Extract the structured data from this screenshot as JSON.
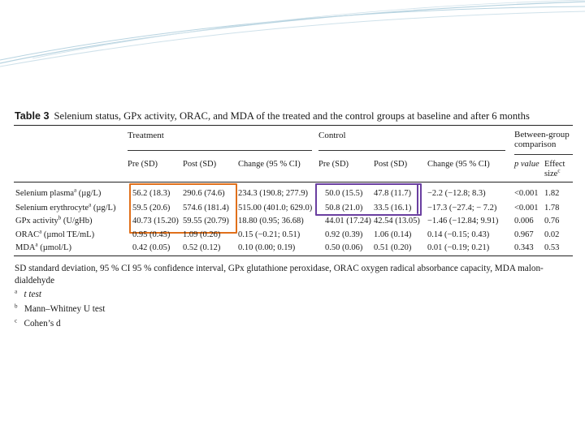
{
  "table": {
    "label": "Table 3",
    "title": "Selenium status, GPx activity, ORAC, and MDA of the treated and the control groups at baseline and after 6 months",
    "groups": {
      "treatment": "Treatment",
      "control": "Control",
      "between_line1": "Between-group",
      "between_line2": "comparison"
    },
    "columns": {
      "t_pre": "Pre (SD)",
      "t_post": "Post (SD)",
      "t_change": "Change (95 % CI)",
      "c_pre": "Pre (SD)",
      "c_post": "Post (SD)",
      "c_change": "Change (95 % CI)",
      "p_value": "p value",
      "effect_line1": "Effect",
      "effect_line2": "size"
    },
    "rows": [
      {
        "label": "Selenium plasma",
        "label_sup": "a",
        "label_unit": " (µg/L)",
        "t_pre": "56.2 (18.3)",
        "t_post": "290.6 (74.6)",
        "t_change": "234.3 (190.8; 277.9)",
        "c_pre": "50.0 (15.5)",
        "c_post": "47.8 (11.7)",
        "c_change": "−2.2 (−12.8; 8.3)",
        "p": "<0.001",
        "es": "1.82"
      },
      {
        "label": "Selenium erythrocyte",
        "label_sup": "a",
        "label_unit": " (µg/L)",
        "t_pre": "59.5 (20.6)",
        "t_post": "574.6 (181.4)",
        "t_change": "515.00 (401.0; 629.0)",
        "c_pre": "50.8 (21.0)",
        "c_post": "33.5 (16.1)",
        "c_change": "−17.3 (−27.4; − 7.2)",
        "p": "<0.001",
        "es": "1.78"
      },
      {
        "label": "GPx activity",
        "label_sup": "b",
        "label_unit": " (U/gHb)",
        "t_pre": "40.73 (15.20)",
        "t_post": "59.55 (20.79)",
        "t_change": "18.80 (0.95; 36.68)",
        "c_pre": "44.01 (17.24)",
        "c_post": "42.54 (13.05)",
        "c_change": "−1.46 (−12.84; 9.91)",
        "p": "0.006",
        "es": "0.76"
      },
      {
        "label": "ORAC",
        "label_sup": "a",
        "label_unit": " (µmol TE/mL)",
        "t_pre": "0.95 (0.45)",
        "t_post": "1.09 (0.26)",
        "t_change": "0.15 (−0.21; 0.51)",
        "c_pre": "0.92 (0.39)",
        "c_post": "1.06 (0.14)",
        "c_change": "0.14 (−0.15; 0.43)",
        "p": "0.967",
        "es": "0.02"
      },
      {
        "label": "MDA",
        "label_sup": "a",
        "label_unit": " (µmol/L)",
        "t_pre": "0.42 (0.05)",
        "t_post": "0.52 (0.12)",
        "t_change": "0.10 (0.00; 0.19)",
        "c_pre": "0.50 (0.06)",
        "c_post": "0.51 (0.20)",
        "c_change": "0.01 (−0.19; 0.21)",
        "p": "0.343",
        "es": "0.53"
      }
    ],
    "footnotes": {
      "abbrev_line1": "SD standard deviation, 95 % CI 95 % confidence interval, GPx glutathione peroxidase, ORAC oxygen radical absorbance capacity, MDA malon-",
      "abbrev_line2": "dialdehyde",
      "a_mark": "a",
      "a_text": "t test",
      "b_mark": "b",
      "b_text": "Mann–Whitney U test",
      "c_mark": "c",
      "c_text": "Cohen’s d"
    }
  },
  "colors": {
    "treatment_box": "#e0701b",
    "control_box": "#6a3fa0",
    "swoosh": "#b7d3e0"
  }
}
